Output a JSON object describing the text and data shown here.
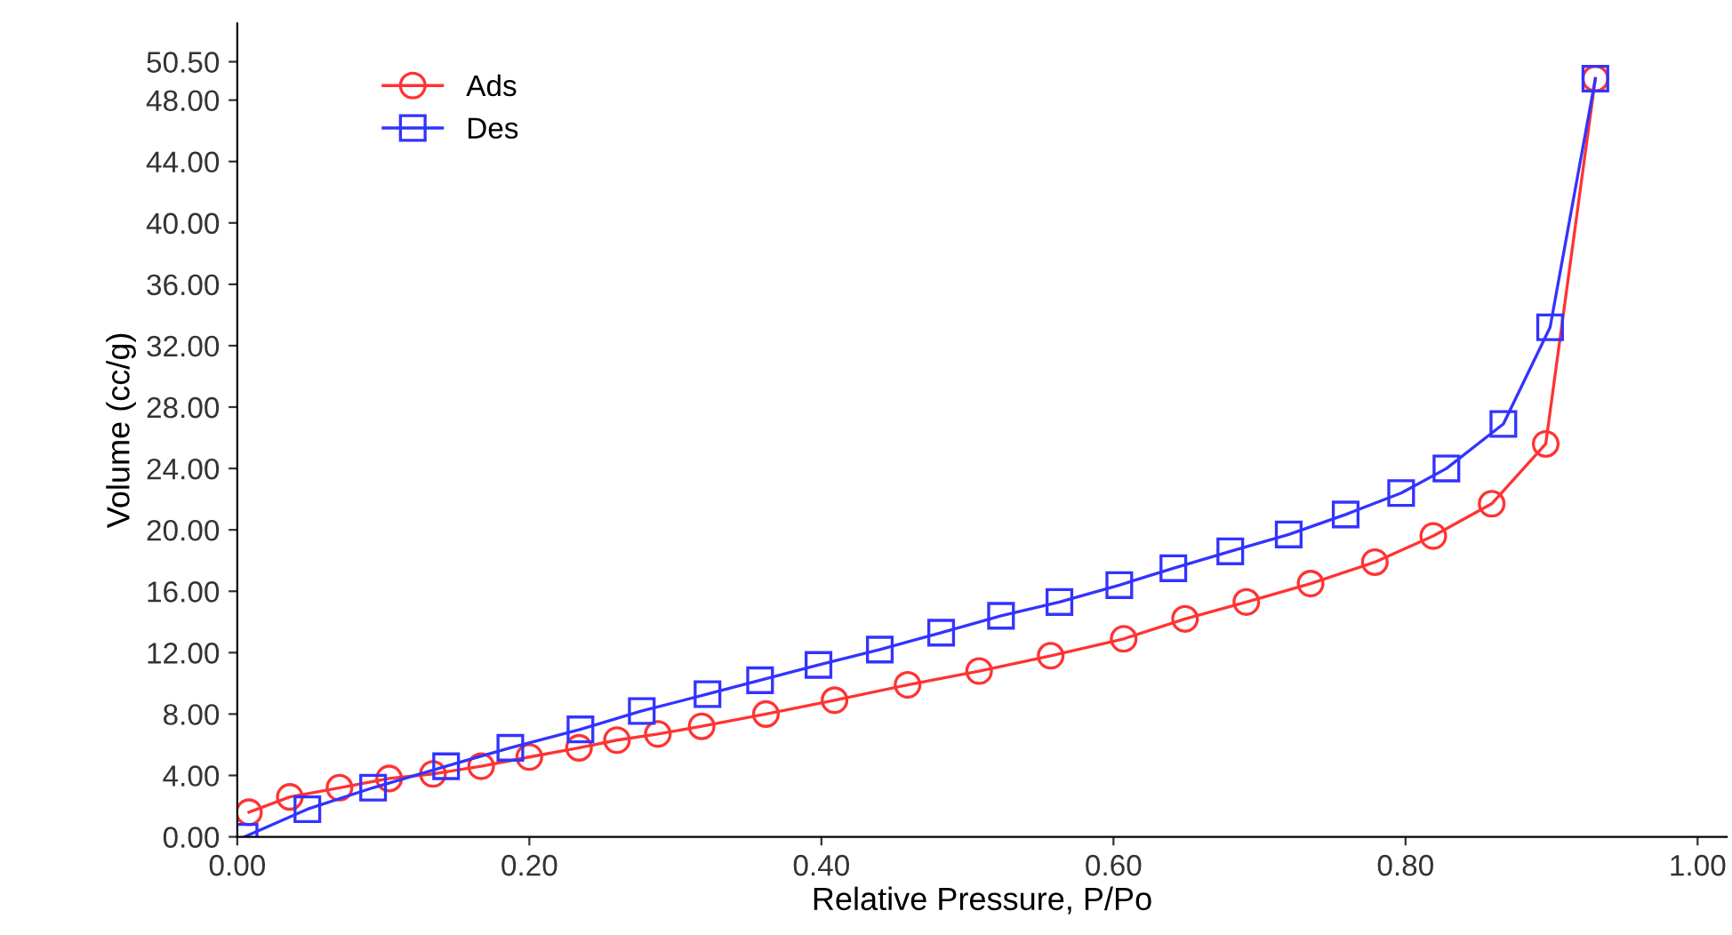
{
  "chart_data": {
    "type": "line",
    "xlabel": "Relative Pressure, P/Po",
    "ylabel": "Volume (cc/g)",
    "xlim": [
      0,
      1.02
    ],
    "ylim": [
      0,
      53
    ],
    "xticks": [
      {
        "value": 0,
        "label": "0.00"
      },
      {
        "value": 0.2,
        "label": "0.20"
      },
      {
        "value": 0.4,
        "label": "0.40"
      },
      {
        "value": 0.6,
        "label": "0.60"
      },
      {
        "value": 0.8,
        "label": "0.80"
      },
      {
        "value": 1.0,
        "label": "1.00"
      }
    ],
    "yticks": [
      {
        "value": 0,
        "label": "0.00"
      },
      {
        "value": 4,
        "label": "4.00"
      },
      {
        "value": 8,
        "label": "8.00"
      },
      {
        "value": 12,
        "label": "12.00"
      },
      {
        "value": 16,
        "label": "16.00"
      },
      {
        "value": 20,
        "label": "20.00"
      },
      {
        "value": 24,
        "label": "24.00"
      },
      {
        "value": 28,
        "label": "28.00"
      },
      {
        "value": 32,
        "label": "32.00"
      },
      {
        "value": 36,
        "label": "36.00"
      },
      {
        "value": 40,
        "label": "40.00"
      },
      {
        "value": 44,
        "label": "44.00"
      },
      {
        "value": 48,
        "label": "48.00"
      },
      {
        "value": 50.5,
        "label": "50.50"
      }
    ],
    "grid": false,
    "legend": "top left",
    "line_style": "solid",
    "series": [
      {
        "name": "Ads",
        "color": "#ff3333",
        "marker": "circle",
        "x": [
          0.008,
          0.036,
          0.07,
          0.104,
          0.134,
          0.167,
          0.2,
          0.234,
          0.26,
          0.288,
          0.318,
          0.362,
          0.409,
          0.459,
          0.508,
          0.557,
          0.607,
          0.649,
          0.691,
          0.735,
          0.779,
          0.819,
          0.859,
          0.896,
          0.93
        ],
        "values": [
          1.6,
          2.6,
          3.2,
          3.8,
          4.1,
          4.6,
          5.2,
          5.8,
          6.3,
          6.7,
          7.2,
          8.0,
          8.9,
          9.9,
          10.8,
          11.8,
          12.9,
          14.2,
          15.3,
          16.5,
          17.9,
          19.6,
          21.7,
          25.6,
          49.4
        ]
      },
      {
        "name": "Des",
        "color": "#3333ff",
        "marker": "square",
        "x": [
          0.005,
          0.048,
          0.093,
          0.143,
          0.187,
          0.235,
          0.277,
          0.322,
          0.358,
          0.398,
          0.44,
          0.482,
          0.523,
          0.563,
          0.604,
          0.641,
          0.68,
          0.72,
          0.759,
          0.797,
          0.828,
          0.867,
          0.899,
          0.93
        ],
        "values": [
          0,
          1.8,
          3.2,
          4.6,
          5.8,
          7.0,
          8.2,
          9.3,
          10.2,
          11.2,
          12.2,
          13.3,
          14.4,
          15.3,
          16.4,
          17.5,
          18.6,
          19.7,
          21.0,
          22.4,
          24.0,
          26.9,
          33.2,
          49.4
        ]
      }
    ]
  }
}
